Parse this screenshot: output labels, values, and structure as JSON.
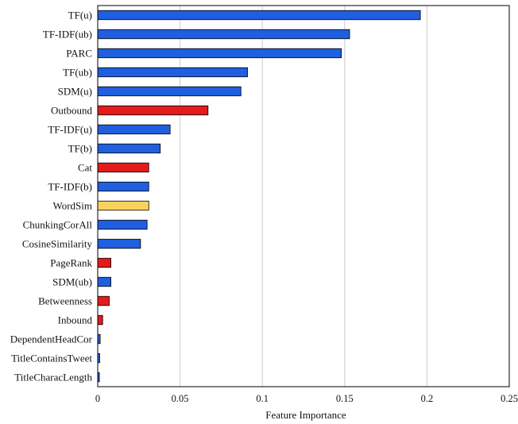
{
  "chart_data": {
    "type": "bar",
    "orientation": "horizontal",
    "xlabel": "Feature Importance",
    "ylabel": "",
    "xlim": [
      0,
      0.25
    ],
    "x_ticks": [
      "0",
      "0.05",
      "0.1",
      "0.15",
      "0.2",
      "0.25"
    ],
    "grid": "vertical gridlines",
    "legend": "none",
    "categories": [
      "TF(u)",
      "TF-IDF(ub)",
      "PARC",
      "TF(ub)",
      "SDM(u)",
      "Outbound",
      "TF-IDF(u)",
      "TF(b)",
      "Cat",
      "TF-IDF(b)",
      "WordSim",
      "ChunkingCorAll",
      "CosineSimilarity",
      "PageRank",
      "SDM(ub)",
      "Betweenness",
      "Inbound",
      "DependentHeadCor",
      "TitleContainsTweet",
      "TitleCharacLength"
    ],
    "values": [
      0.196,
      0.153,
      0.148,
      0.091,
      0.087,
      0.067,
      0.044,
      0.038,
      0.031,
      0.031,
      0.031,
      0.03,
      0.026,
      0.008,
      0.008,
      0.007,
      0.003,
      0.0015,
      0.0012,
      0.001
    ],
    "bar_colors": [
      "#1f5fe0",
      "#1f5fe0",
      "#1f5fe0",
      "#1f5fe0",
      "#1f5fe0",
      "#e31b1b",
      "#1f5fe0",
      "#1f5fe0",
      "#e31b1b",
      "#1f5fe0",
      "#f9d35c",
      "#1f5fe0",
      "#1f5fe0",
      "#e31b1b",
      "#1f5fe0",
      "#e31b1b",
      "#e31b1b",
      "#1f5fe0",
      "#1f5fe0",
      "#1f5fe0"
    ],
    "colors": {
      "gridline": "#cccccc",
      "axis": "#000000",
      "bar_outline": "#000000"
    }
  }
}
